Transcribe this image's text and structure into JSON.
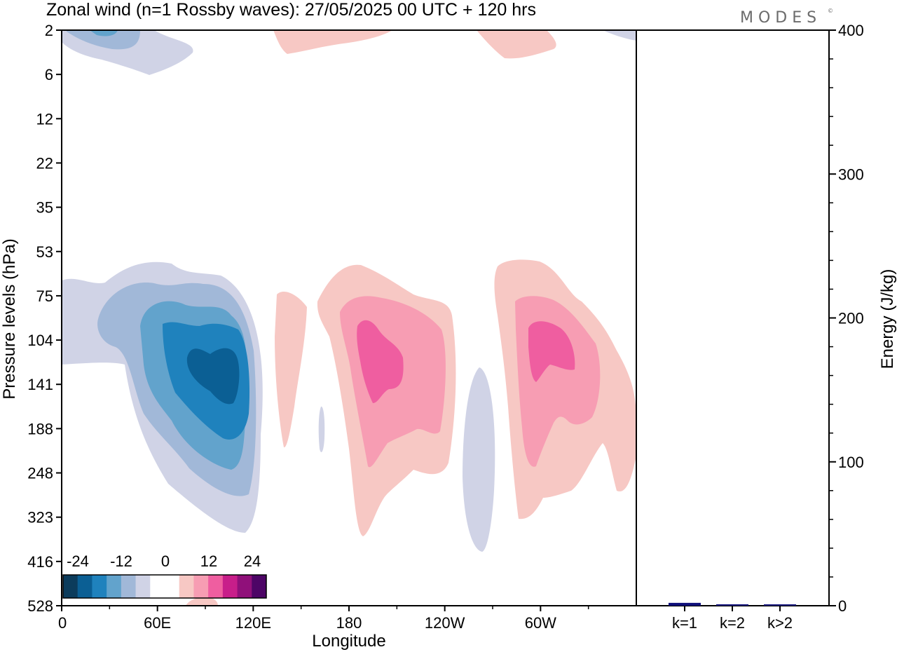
{
  "header": {
    "title": "Zonal wind (n=1 Rossby waves):  27/05/2025  00 UTC  + 120 hrs",
    "logo": "MODES",
    "logo_mark": "©"
  },
  "chart_data": [
    {
      "type": "heatmap",
      "title": "Zonal wind (n=1 Rossby waves):  27/05/2025  00 UTC  + 120 hrs",
      "xlabel": "Longitude",
      "ylabel": "Pressure levels (hPa)",
      "x_ticks": [
        "0",
        "60E",
        "120E",
        "180",
        "120W",
        "60W"
      ],
      "x_tick_values": [
        0,
        60,
        120,
        180,
        240,
        300
      ],
      "xlim": [
        0,
        360
      ],
      "y_ticks": [
        "2",
        "6",
        "12",
        "22",
        "35",
        "53",
        "75",
        "104",
        "141",
        "188",
        "248",
        "323",
        "416",
        "528"
      ],
      "y_axis": "pressure levels, top = 2 hPa, bottom = 528 hPa",
      "colorbar": {
        "tick_labels": [
          "-24",
          "-12",
          "0",
          "12",
          "24"
        ],
        "colors": [
          "#0c3c5c",
          "#0b5f94",
          "#1f82bd",
          "#62a3cc",
          "#a1b8d8",
          "#d0d3e6",
          "#ffffff",
          "#ffffff",
          "#f7c8c4",
          "#f79db3",
          "#ef5ea0",
          "#c81e8a",
          "#90107a",
          "#4d0566"
        ]
      },
      "features": [
        {
          "sign": "negative",
          "center_lon": 95,
          "center_hPa": 141,
          "peak": "-16 to -20",
          "note": "strong easterly core 40E–125E"
        },
        {
          "sign": "negative",
          "center_lon": 25,
          "center_hPa": 2,
          "peak": "-8 to -12"
        },
        {
          "sign": "positive",
          "center_lon": 195,
          "center_hPa": 125,
          "peak": "8 to 12"
        },
        {
          "sign": "positive",
          "center_lon": 300,
          "center_hPa": 115,
          "peak": "8 to 12"
        },
        {
          "sign": "positive",
          "center_lon": 140,
          "center_hPa": 125,
          "peak": "0 to 4"
        },
        {
          "sign": "negative",
          "center_lon": 265,
          "center_hPa": 248,
          "peak": "0 to -4"
        },
        {
          "sign": "positive",
          "center_lon": 165,
          "center_hPa": 2,
          "peak": "0 to 4"
        },
        {
          "sign": "positive",
          "center_lon": 280,
          "center_hPa": 2,
          "peak": "0 to 4"
        }
      ]
    },
    {
      "type": "bar",
      "categories": [
        "k=1",
        "k=2",
        "k>2"
      ],
      "values": [
        2,
        1,
        0.5
      ],
      "ylabel": "Energy (J/kg)",
      "y_ticks": [
        "0",
        "100",
        "200",
        "300",
        "400"
      ],
      "ylim": [
        0,
        400
      ],
      "bar_color": "#10107a"
    }
  ]
}
